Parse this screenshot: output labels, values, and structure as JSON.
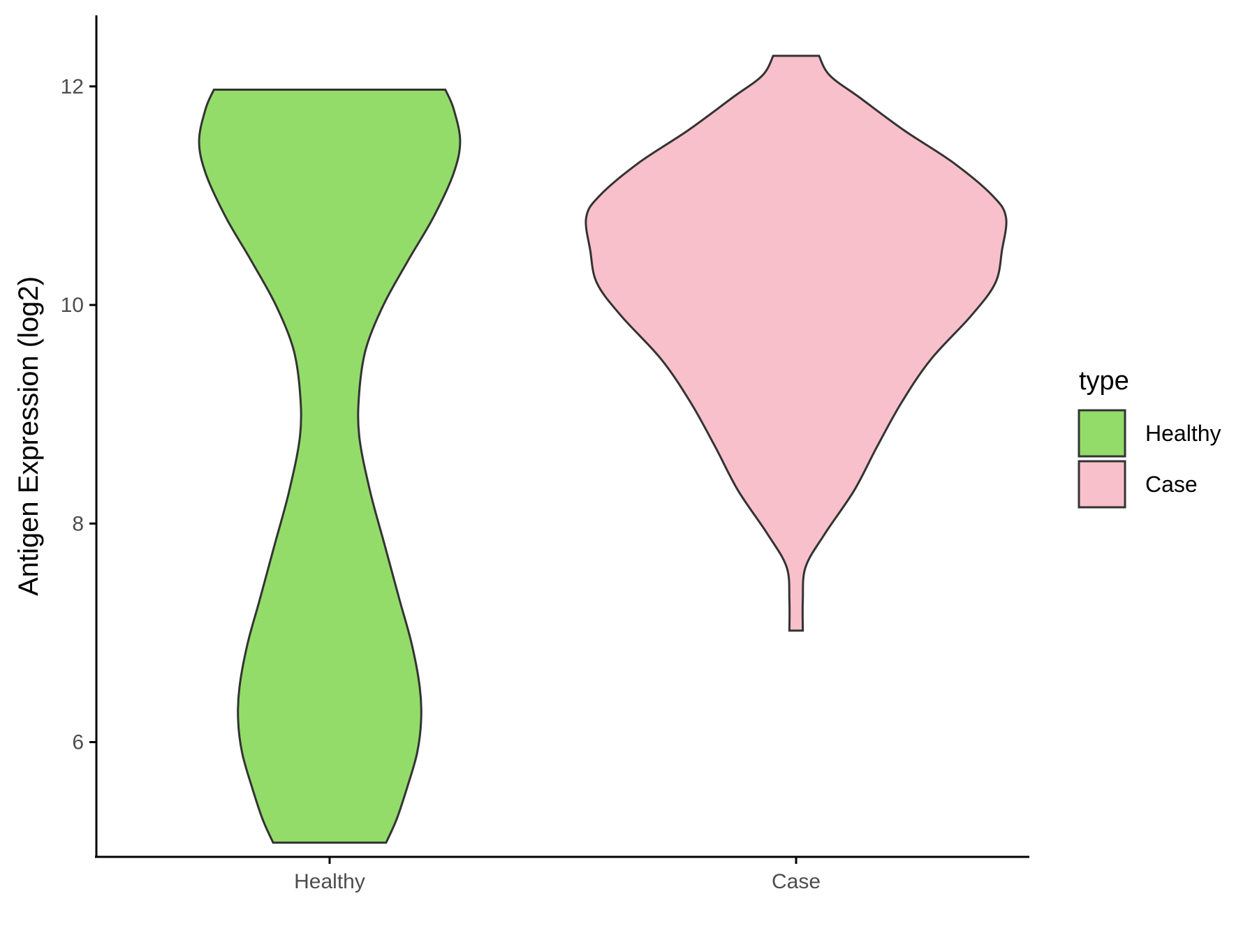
{
  "chart_data": {
    "type": "violin",
    "title": "",
    "xlabel": "",
    "ylabel": "Antigen Expression (log2)",
    "categories": [
      "Healthy",
      "Case"
    ],
    "ylim": [
      4.95,
      12.65
    ],
    "yticks": [
      6,
      8,
      10,
      12
    ],
    "legend": {
      "title": "type",
      "position": "right",
      "entries": [
        "Healthy",
        "Case"
      ]
    },
    "colors": {
      "Healthy": "#93DC6A",
      "Case": "#F8C0CB",
      "outline": "#333333"
    },
    "grid": false,
    "series": [
      {
        "name": "Healthy",
        "min": 5.08,
        "max": 11.97,
        "density": [
          [
            5.08,
            0.42
          ],
          [
            5.3,
            0.5
          ],
          [
            5.6,
            0.58
          ],
          [
            5.9,
            0.65
          ],
          [
            6.2,
            0.68
          ],
          [
            6.5,
            0.67
          ],
          [
            6.9,
            0.61
          ],
          [
            7.3,
            0.52
          ],
          [
            7.8,
            0.41
          ],
          [
            8.3,
            0.3
          ],
          [
            8.8,
            0.22
          ],
          [
            9.2,
            0.22
          ],
          [
            9.6,
            0.27
          ],
          [
            10.0,
            0.4
          ],
          [
            10.4,
            0.58
          ],
          [
            10.8,
            0.77
          ],
          [
            11.2,
            0.92
          ],
          [
            11.5,
            0.97
          ],
          [
            11.8,
            0.92
          ],
          [
            11.97,
            0.86
          ]
        ]
      },
      {
        "name": "Case",
        "min": 7.02,
        "max": 12.28,
        "density": [
          [
            7.02,
            0.05
          ],
          [
            7.3,
            0.05
          ],
          [
            7.6,
            0.07
          ],
          [
            7.9,
            0.21
          ],
          [
            8.3,
            0.43
          ],
          [
            8.7,
            0.6
          ],
          [
            9.1,
            0.78
          ],
          [
            9.5,
            1.0
          ],
          [
            9.9,
            1.3
          ],
          [
            10.2,
            1.48
          ],
          [
            10.5,
            1.53
          ],
          [
            10.8,
            1.56
          ],
          [
            11.0,
            1.46
          ],
          [
            11.3,
            1.17
          ],
          [
            11.6,
            0.8
          ],
          [
            11.9,
            0.47
          ],
          [
            12.1,
            0.25
          ],
          [
            12.28,
            0.17
          ]
        ]
      }
    ]
  }
}
